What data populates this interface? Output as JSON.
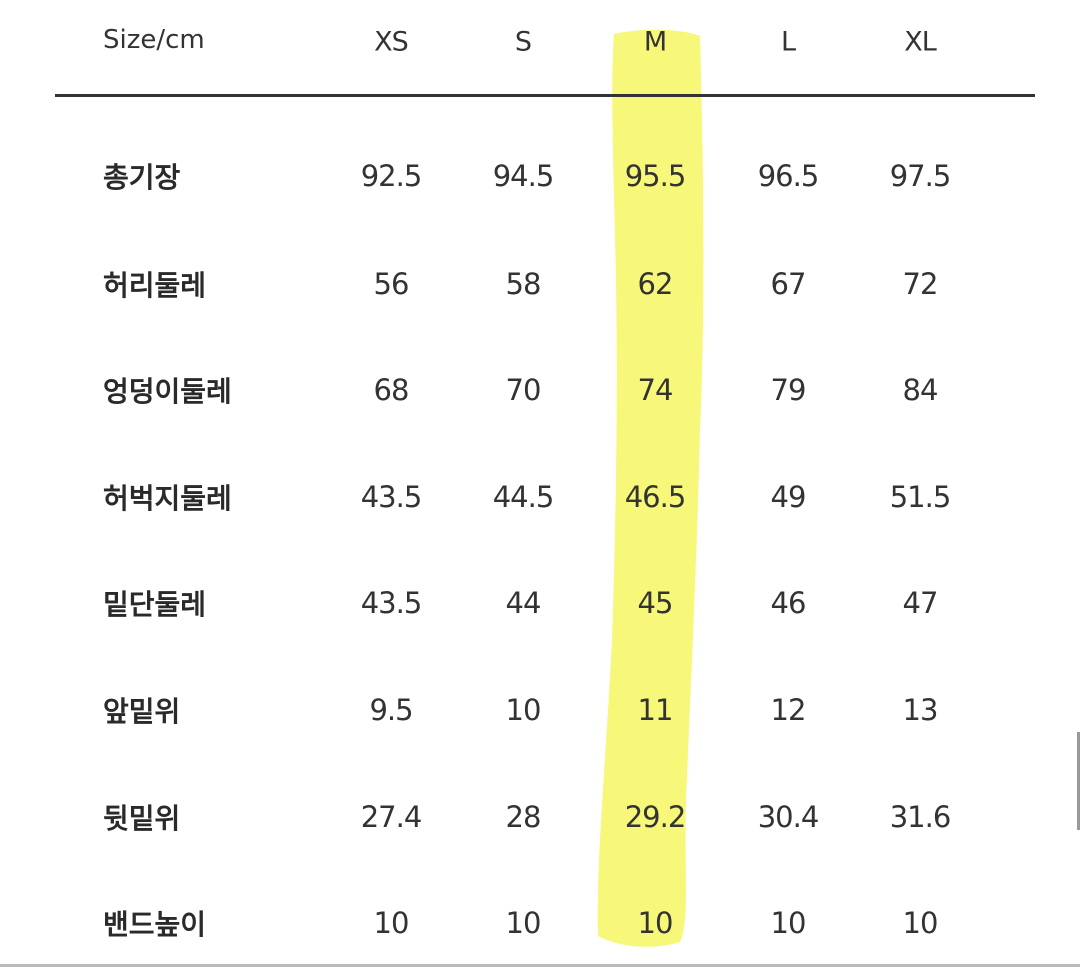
{
  "table": {
    "corner_label": "Size/cm",
    "sizes": [
      "XS",
      "S",
      "M",
      "L",
      "XL"
    ],
    "highlighted_size": "M",
    "highlight_color": "#f6f66a",
    "rows": [
      {
        "label": "총기장",
        "values": [
          "92.5",
          "94.5",
          "95.5",
          "96.5",
          "97.5"
        ]
      },
      {
        "label": "허리둘레",
        "values": [
          "56",
          "58",
          "62",
          "67",
          "72"
        ]
      },
      {
        "label": "엉덩이둘레",
        "values": [
          "68",
          "70",
          "74",
          "79",
          "84"
        ]
      },
      {
        "label": "허벅지둘레",
        "values": [
          "43.5",
          "44.5",
          "46.5",
          "49",
          "51.5"
        ]
      },
      {
        "label": "밑단둘레",
        "values": [
          "43.5",
          "44",
          "45",
          "46",
          "47"
        ]
      },
      {
        "label": "앞밑위",
        "values": [
          "9.5",
          "10",
          "11",
          "12",
          "13"
        ]
      },
      {
        "label": "뒷밑위",
        "values": [
          "27.4",
          "28",
          "29.2",
          "30.4",
          "31.6"
        ]
      },
      {
        "label": "밴드높이",
        "values": [
          "10",
          "10",
          "10",
          "10",
          "10"
        ]
      }
    ]
  }
}
